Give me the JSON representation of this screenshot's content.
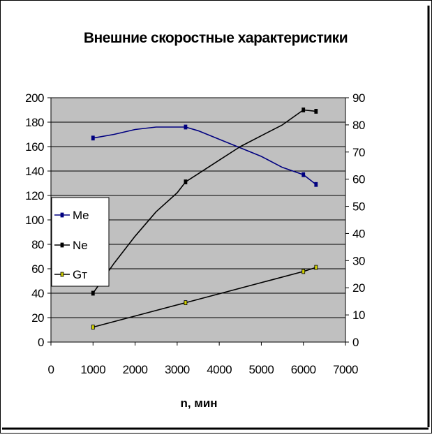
{
  "chart_data": {
    "type": "line",
    "title": "Внешние скоростные характеристики",
    "xlabel": "n, мин",
    "ylabel": "",
    "y2label": "",
    "xlim": [
      0,
      7000
    ],
    "ylim": [
      0,
      200
    ],
    "y2lim": [
      0,
      90
    ],
    "x_ticks": [
      "0",
      "1000",
      "2000",
      "3000",
      "4000",
      "5000",
      "6000",
      "7000"
    ],
    "y_ticks": [
      "0",
      "20",
      "40",
      "60",
      "80",
      "100",
      "120",
      "140",
      "160",
      "180",
      "200"
    ],
    "y2_ticks": [
      "0",
      "10",
      "20",
      "30",
      "40",
      "50",
      "60",
      "70",
      "80",
      "90"
    ],
    "grid": true,
    "legend_position": "left",
    "series": [
      {
        "name": "Me",
        "axis": "left",
        "color": "#000080",
        "marker_color": "#000080",
        "marker_x": [
          1000,
          3200,
          6000,
          6300
        ],
        "x": [
          1000,
          1500,
          2000,
          2500,
          3000,
          3200,
          3500,
          4000,
          4500,
          5000,
          5500,
          6000,
          6300
        ],
        "y": [
          167,
          170,
          174,
          176,
          176,
          176,
          173,
          166,
          159,
          152,
          143,
          137,
          129
        ]
      },
      {
        "name": "Ne",
        "axis": "right",
        "color": "#000000",
        "marker_color": "#000000",
        "marker_x": [
          1000,
          3200,
          6000,
          6300
        ],
        "x": [
          1000,
          1500,
          2000,
          2500,
          3000,
          3200,
          3500,
          4000,
          4500,
          5000,
          5500,
          6000,
          6300
        ],
        "y": [
          18,
          29,
          39,
          48,
          55,
          59,
          62,
          67,
          72,
          76,
          80,
          85.5,
          85
        ]
      },
      {
        "name": "Gт",
        "axis": "right",
        "color": "#000000",
        "marker_color": "#cccc00",
        "marker_x": [
          1000,
          3200,
          6000,
          6300
        ],
        "x": [
          1000,
          3200,
          6000,
          6300
        ],
        "y": [
          5.5,
          14.5,
          26,
          27.5
        ]
      }
    ]
  }
}
